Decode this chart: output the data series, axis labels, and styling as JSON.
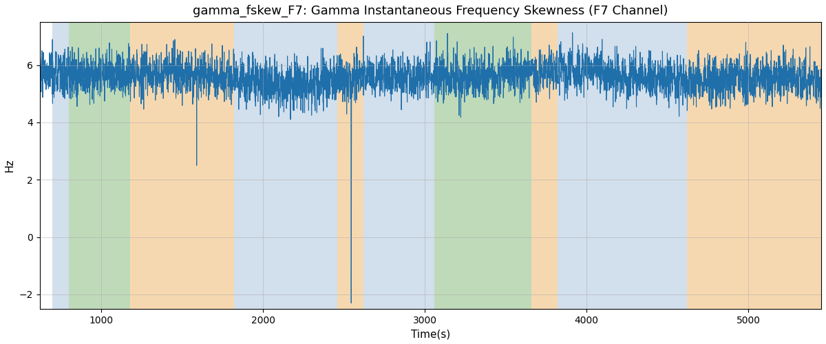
{
  "title": "gamma_fskew_F7: Gamma Instantaneous Frequency Skewness (F7 Channel)",
  "xlabel": "Time(s)",
  "ylabel": "Hz",
  "xlim": [
    620,
    5450
  ],
  "ylim": [
    -2.5,
    7.5
  ],
  "yticks": [
    -2,
    0,
    2,
    4,
    6
  ],
  "xticks": [
    1000,
    2000,
    3000,
    4000,
    5000
  ],
  "line_color": "#1f6faa",
  "line_width": 0.8,
  "background_color": "#ffffff",
  "grid_color": "#aaaaaa",
  "title_fontsize": 13,
  "label_fontsize": 11,
  "bands": [
    {
      "xmin": 700,
      "xmax": 800,
      "color": "#adc6de",
      "alpha": 0.55
    },
    {
      "xmin": 800,
      "xmax": 1180,
      "color": "#8cbd80",
      "alpha": 0.55
    },
    {
      "xmin": 1180,
      "xmax": 1820,
      "color": "#f0b870",
      "alpha": 0.55
    },
    {
      "xmin": 1820,
      "xmax": 2460,
      "color": "#adc6de",
      "alpha": 0.55
    },
    {
      "xmin": 2460,
      "xmax": 2620,
      "color": "#f0b870",
      "alpha": 0.55
    },
    {
      "xmin": 2620,
      "xmax": 3060,
      "color": "#adc6de",
      "alpha": 0.55
    },
    {
      "xmin": 3060,
      "xmax": 3660,
      "color": "#8cbd80",
      "alpha": 0.55
    },
    {
      "xmin": 3660,
      "xmax": 3820,
      "color": "#f0b870",
      "alpha": 0.55
    },
    {
      "xmin": 3820,
      "xmax": 4620,
      "color": "#adc6de",
      "alpha": 0.55
    },
    {
      "xmin": 4620,
      "xmax": 5450,
      "color": "#f0b870",
      "alpha": 0.55
    }
  ],
  "t_start": 620,
  "t_end": 5450,
  "n_points": 4830,
  "base_value": 5.6,
  "spike1_t": 1590,
  "spike1_v": 2.5,
  "spike2_t": 2545,
  "spike2_v": -2.3
}
